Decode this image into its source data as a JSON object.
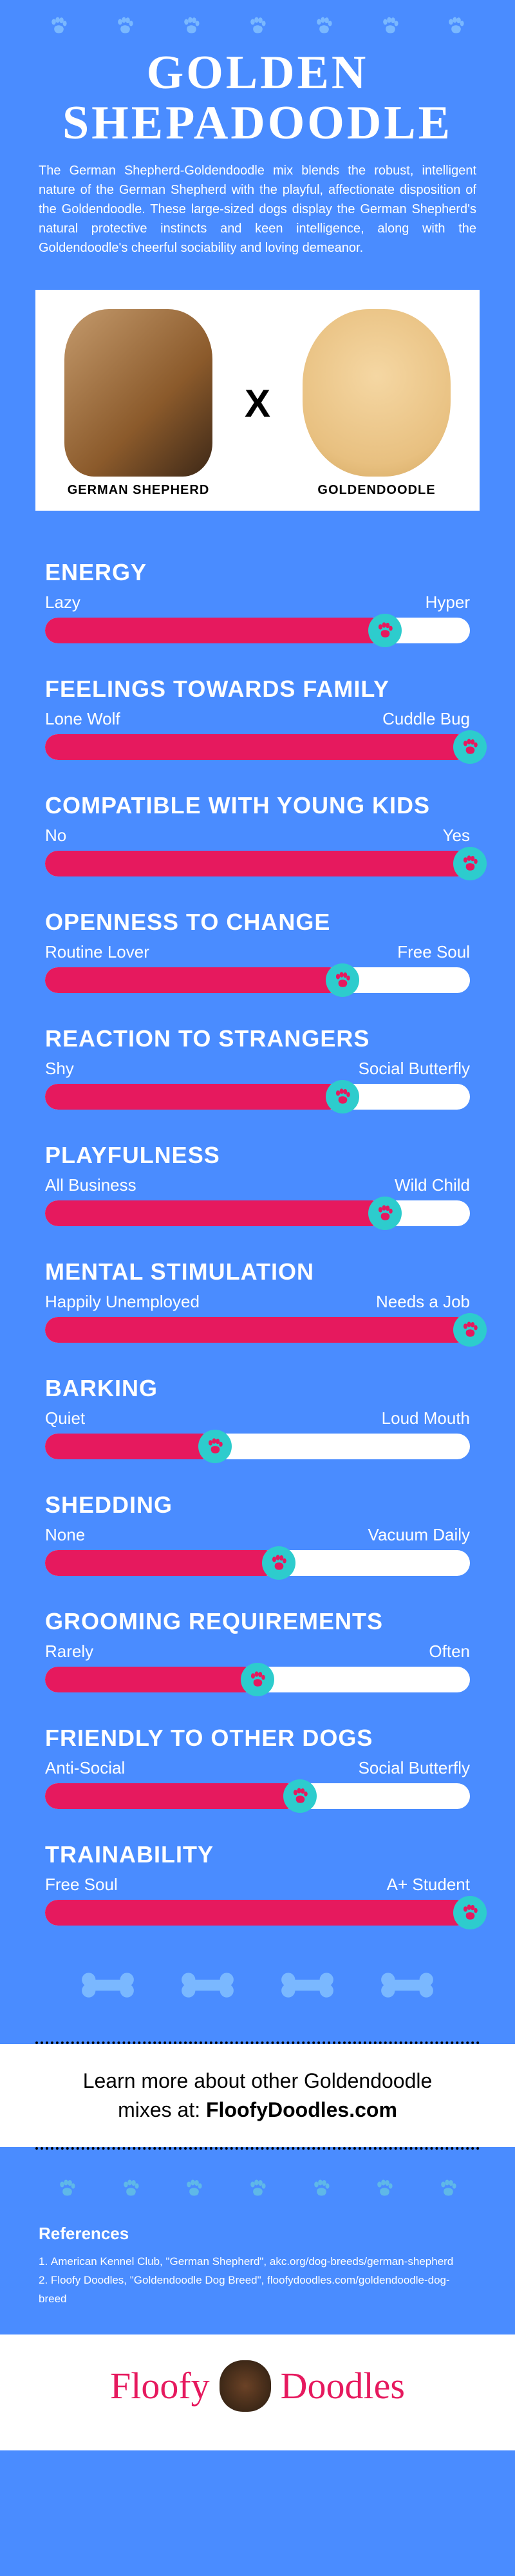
{
  "colors": {
    "background": "#4a8cff",
    "accent": "#e6195e",
    "marker": "#2dcccd",
    "marker_inner": "#e6195e",
    "paw_light": "#7ab8ff",
    "paw_teal": "#5fb8e8",
    "white": "#ffffff"
  },
  "title": "GOLDEN SHEPADOODLE",
  "description": "The German Shepherd-Goldendoodle mix blends the robust, intelligent nature of the German Shepherd with the playful, affectionate disposition of the Goldendoodle. These large-sized dogs display the German Shepherd's natural protective instincts and keen intelligence, along with the Goldendoodle's cheerful sociability and loving demeanor.",
  "breeds": {
    "left": "GERMAN SHEPHERD",
    "right": "GOLDENDOODLE",
    "cross": "X"
  },
  "traits": [
    {
      "name": "ENERGY",
      "low": "Lazy",
      "high": "Hyper",
      "value": 80
    },
    {
      "name": "FEELINGS TOWARDS FAMILY",
      "low": "Lone Wolf",
      "high": "Cuddle Bug",
      "value": 100
    },
    {
      "name": "COMPATIBLE WITH YOUNG KIDS",
      "low": "No",
      "high": "Yes",
      "value": 100
    },
    {
      "name": "OPENNESS TO CHANGE",
      "low": "Routine Lover",
      "high": "Free Soul",
      "value": 70
    },
    {
      "name": "REACTION TO STRANGERS",
      "low": "Shy",
      "high": "Social Butterfly",
      "value": 70
    },
    {
      "name": "PLAYFULNESS",
      "low": "All Business",
      "high": "Wild Child",
      "value": 80
    },
    {
      "name": "MENTAL STIMULATION",
      "low": "Happily Unemployed",
      "high": "Needs a Job",
      "value": 100
    },
    {
      "name": "BARKING",
      "low": "Quiet",
      "high": "Loud Mouth",
      "value": 40
    },
    {
      "name": "SHEDDING",
      "low": "None",
      "high": "Vacuum Daily",
      "value": 55
    },
    {
      "name": "GROOMING REQUIREMENTS",
      "low": "Rarely",
      "high": "Often",
      "value": 50
    },
    {
      "name": "FRIENDLY TO OTHER DOGS",
      "low": "Anti-Social",
      "high": "Social Butterfly",
      "value": 60
    },
    {
      "name": "TRAINABILITY",
      "low": "Free Soul",
      "high": "A+ Student",
      "value": 100
    }
  ],
  "learn_more": {
    "line1": "Learn more about other Goldendoodle",
    "line2_prefix": "mixes at: ",
    "site": "FloofyDoodles.com"
  },
  "references_title": "References",
  "references": [
    "American Kennel Club, \"German Shepherd\", akc.org/dog-breeds/german-shepherd",
    "Floofy Doodles, \"Goldendoodle Dog Breed\", floofydoodles.com/goldendoodle-dog-breed"
  ],
  "logo": {
    "word1": "Floofy",
    "word2": "Doodles"
  }
}
